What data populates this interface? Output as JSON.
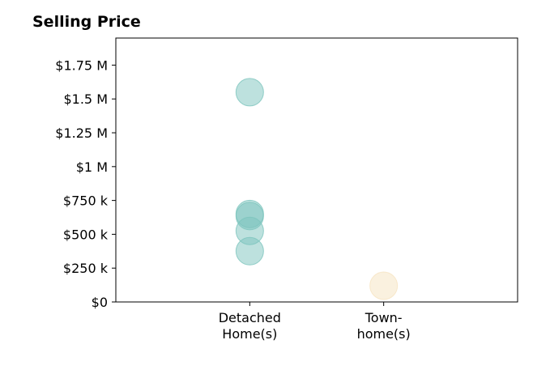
{
  "chart_data": {
    "type": "scatter",
    "title": "Selling Price",
    "xlabel": "",
    "ylabel": "",
    "categories": [
      {
        "lines": [
          "Detached",
          "Home(s)"
        ]
      },
      {
        "lines": [
          "Town-",
          "home(s)"
        ]
      }
    ],
    "ylim": [
      0,
      1950000
    ],
    "yticks": [
      {
        "value": 0,
        "label": "$0"
      },
      {
        "value": 250000,
        "label": "$250 k"
      },
      {
        "value": 500000,
        "label": "$500 k"
      },
      {
        "value": 750000,
        "label": "$750 k"
      },
      {
        "value": 1000000,
        "label": "$1 M"
      },
      {
        "value": 1250000,
        "label": "$1.25 M"
      },
      {
        "value": 1500000,
        "label": "$1.5 M"
      },
      {
        "value": 1750000,
        "label": "$1.75 M"
      }
    ],
    "grid": false,
    "series": [
      {
        "category_index": 0,
        "color": "#7cc4bd",
        "values": [
          1550000,
          650000,
          635000,
          525000,
          375000
        ]
      },
      {
        "category_index": 1,
        "color": "#f6e3c0",
        "values": [
          120000
        ]
      }
    ]
  }
}
